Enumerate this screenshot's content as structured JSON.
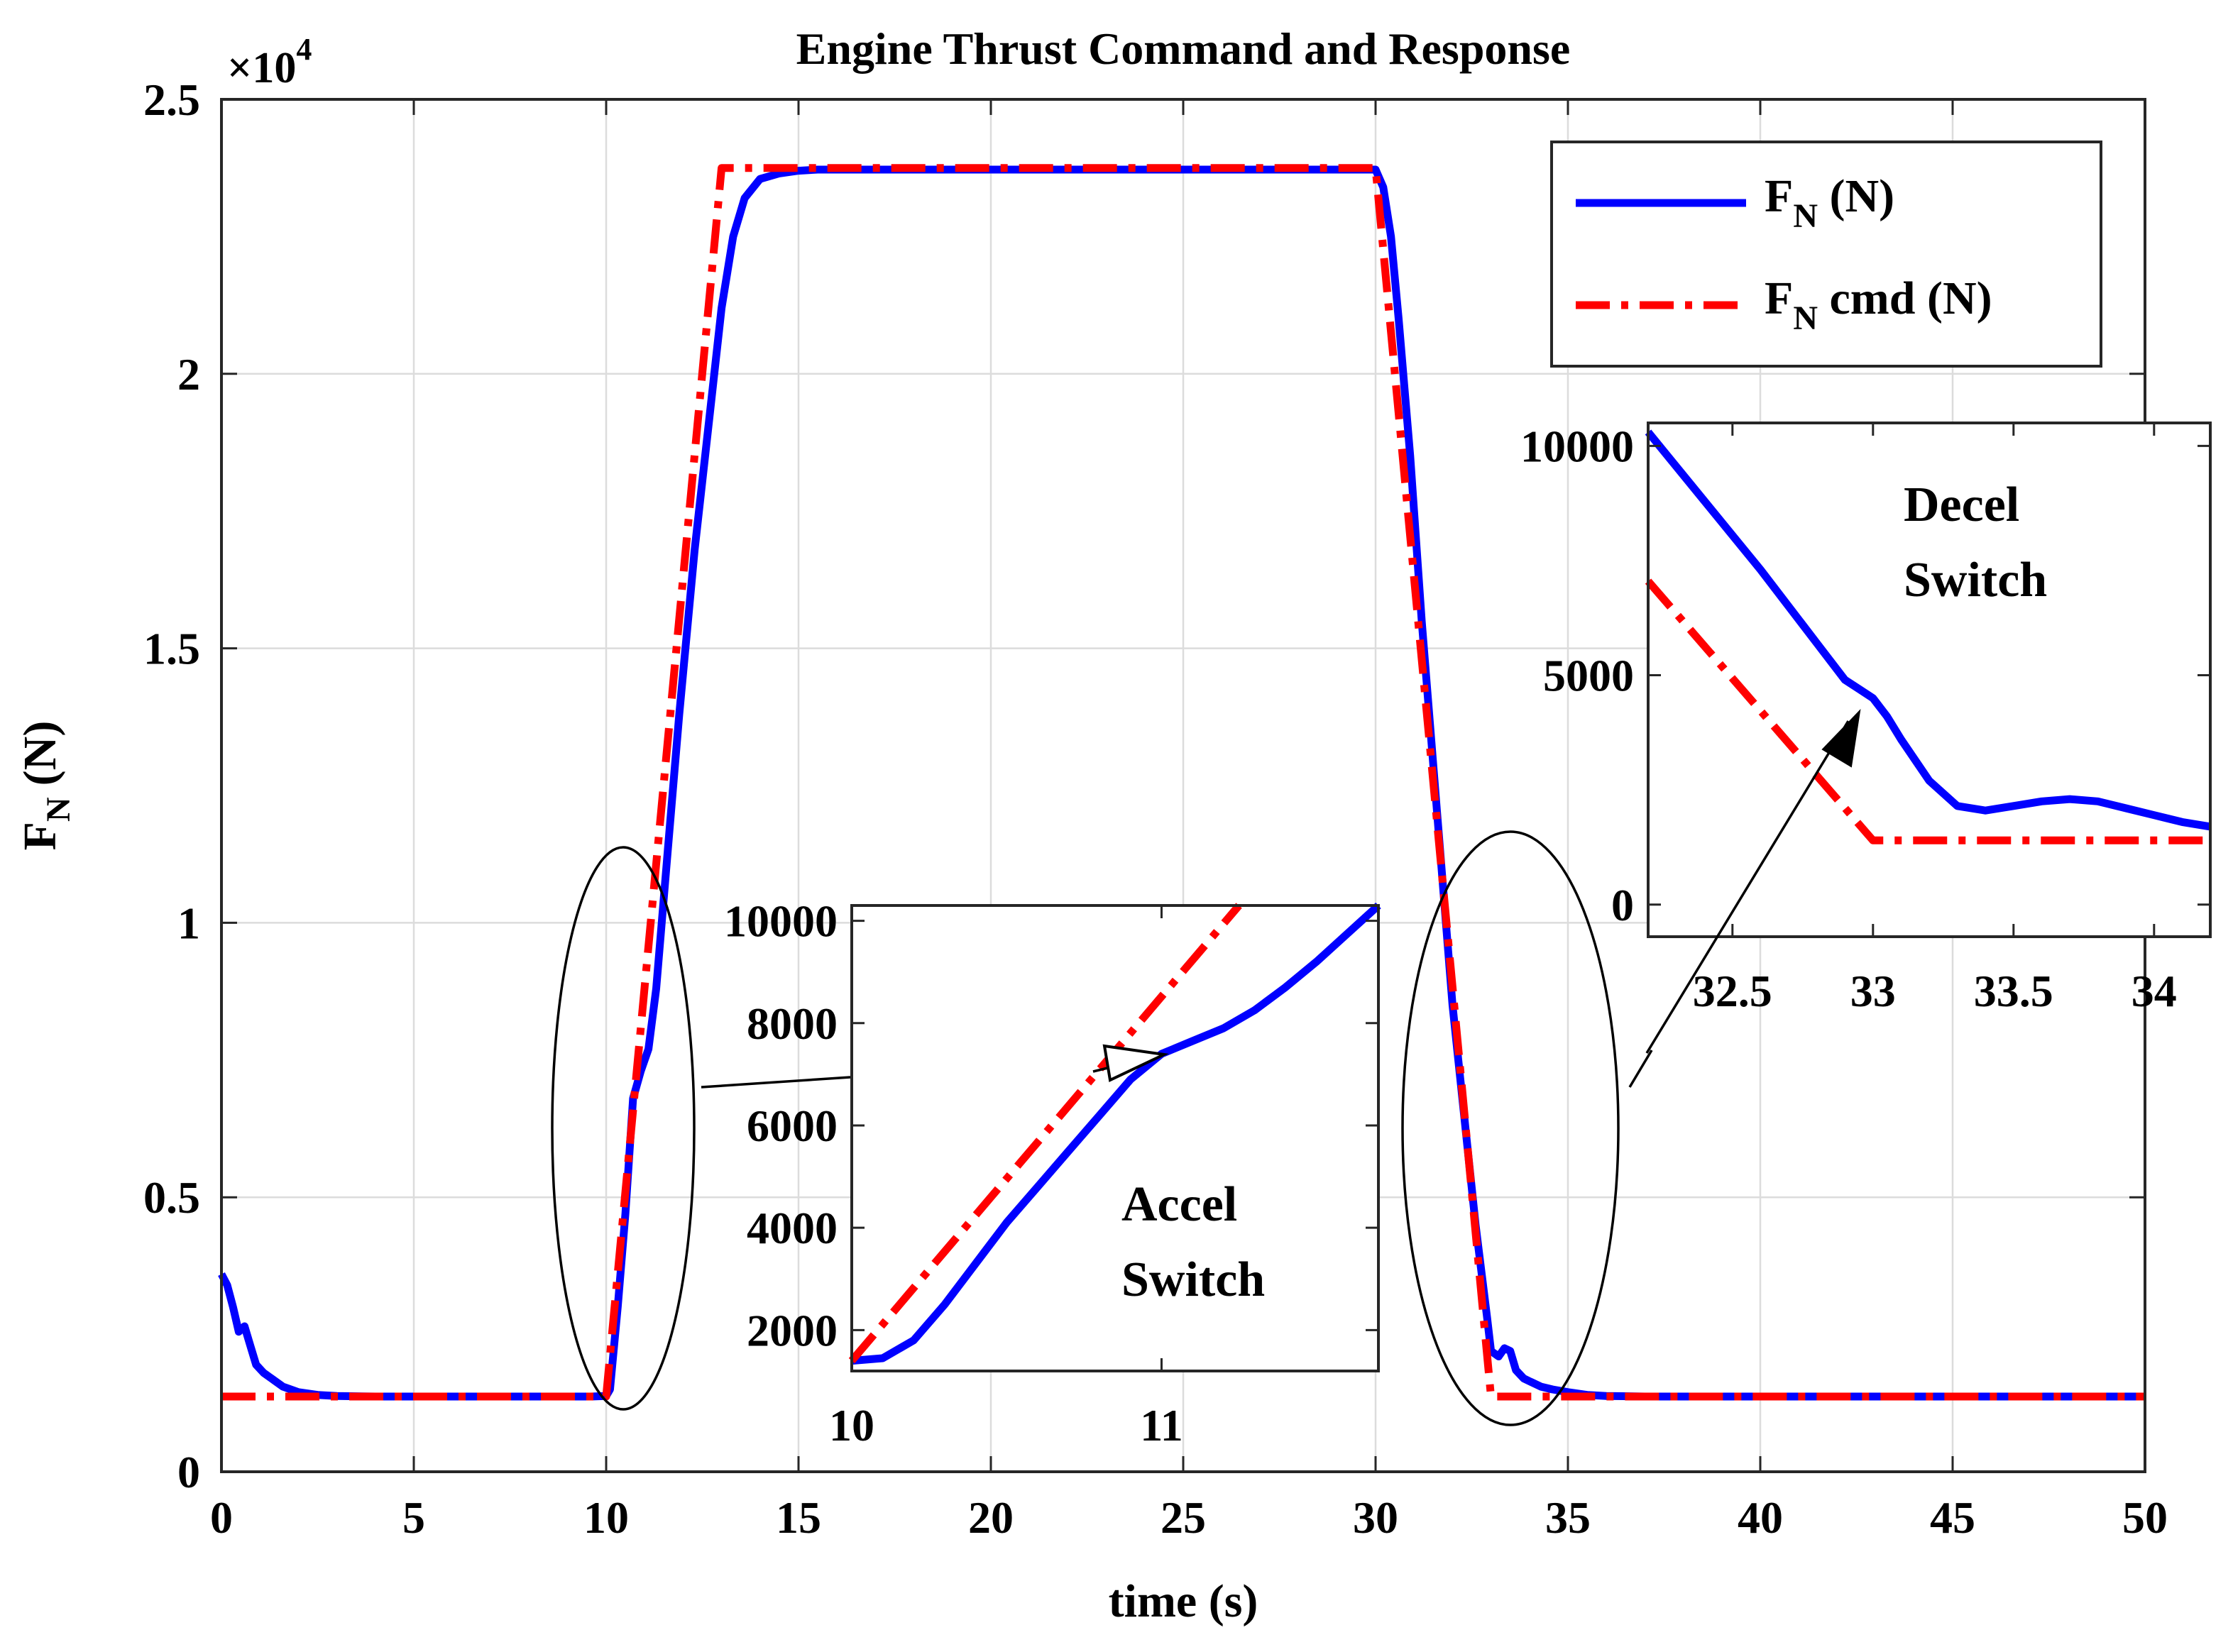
{
  "chart_data": {
    "type": "line",
    "title": "Engine Thrust Command and Response",
    "xlabel": "time (s)",
    "ylabel": "F",
    "ylabel_subscript": "N",
    "ylabel_unit": "(N)",
    "y_exponent_label": "×10",
    "y_exponent_power": "4",
    "xlim": [
      0,
      50
    ],
    "ylim": [
      0,
      25000
    ],
    "grid": true,
    "x_ticks": [
      0,
      5,
      10,
      15,
      20,
      25,
      30,
      35,
      40,
      45,
      50
    ],
    "x_tick_labels": [
      "0",
      "5",
      "10",
      "15",
      "20",
      "25",
      "30",
      "35",
      "40",
      "45",
      "50"
    ],
    "y_ticks": [
      0,
      5000,
      10000,
      15000,
      20000,
      25000
    ],
    "y_tick_labels": [
      "0",
      "0.5",
      "1",
      "1.5",
      "2",
      "2.5"
    ],
    "legend": {
      "position": "top-right",
      "entries": [
        {
          "base": "F",
          "sub": "N",
          "suffix": " (N)"
        },
        {
          "base": "F",
          "sub": "N",
          "suffix": " cmd (N)"
        }
      ]
    },
    "series": [
      {
        "name": "F_N (N)",
        "color": "#0000ff",
        "style": "solid",
        "x": [
          0,
          0.15,
          0.3,
          0.45,
          0.6,
          0.75,
          0.9,
          1.1,
          1.3,
          1.6,
          2.0,
          2.5,
          3.0,
          4.0,
          6.0,
          8.0,
          9.6,
          10.0,
          10.1,
          10.3,
          10.5,
          10.7,
          10.9,
          11.1,
          11.3,
          11.6,
          11.9,
          12.3,
          12.7,
          13.0,
          13.3,
          13.6,
          14.0,
          14.5,
          15.0,
          15.5,
          16.0,
          20.0,
          25.0,
          30.0,
          30.2,
          30.4,
          30.6,
          30.9,
          31.2,
          31.6,
          32.0,
          32.3,
          32.6,
          32.9,
          33.0,
          33.2,
          33.35,
          33.5,
          33.65,
          33.85,
          34.0,
          34.3,
          34.6,
          35.0,
          35.5,
          36.0,
          37.0,
          40.0,
          45.0,
          50.0
        ],
        "y": [
          3600,
          3400,
          3000,
          2550,
          2650,
          2300,
          1950,
          1800,
          1700,
          1550,
          1450,
          1400,
          1380,
          1370,
          1370,
          1370,
          1370,
          1380,
          1500,
          3000,
          4700,
          6800,
          7300,
          7700,
          8800,
          11300,
          13800,
          16800,
          19300,
          21200,
          22500,
          23200,
          23550,
          23650,
          23700,
          23720,
          23720,
          23720,
          23720,
          23720,
          23400,
          22500,
          21000,
          18500,
          15500,
          12000,
          8500,
          6500,
          4500,
          2800,
          2200,
          2100,
          2250,
          2200,
          1850,
          1700,
          1650,
          1550,
          1500,
          1450,
          1400,
          1380,
          1370,
          1370,
          1370,
          1370
        ]
      },
      {
        "name": "F_N cmd (N)",
        "color": "#ff0000",
        "style": "dash-dot",
        "x": [
          0,
          10.0,
          13.0,
          30.0,
          33.0,
          50.0
        ],
        "y": [
          1370,
          1370,
          23750,
          23750,
          1370,
          1370
        ]
      }
    ],
    "insets": [
      {
        "name": "accel-inset",
        "annotation": [
          "Accel",
          "Switch"
        ],
        "xlim": [
          10,
          11.7
        ],
        "ylim": [
          1200,
          10300
        ],
        "x_ticks": [
          10,
          11
        ],
        "x_tick_labels": [
          "10",
          "11"
        ],
        "y_ticks": [
          2000,
          4000,
          6000,
          8000,
          10000
        ],
        "y_tick_labels": [
          "2000",
          "4000",
          "6000",
          "8000",
          "10000"
        ],
        "series": [
          {
            "name": "F_N (N)",
            "x": [
              10.0,
              10.1,
              10.2,
              10.3,
              10.4,
              10.5,
              10.6,
              10.7,
              10.8,
              10.9,
              11.0,
              11.1,
              11.2,
              11.3,
              11.4,
              11.5,
              11.6,
              11.7
            ],
            "y": [
              1400,
              1450,
              1800,
              2500,
              3300,
              4100,
              4800,
              5500,
              6200,
              6900,
              7400,
              7650,
              7900,
              8250,
              8700,
              9200,
              9750,
              10300
            ]
          },
          {
            "name": "F_N cmd (N)",
            "x": [
              10.0,
              11.25
            ],
            "y": [
              1400,
              10300
            ]
          }
        ]
      },
      {
        "name": "decel-inset",
        "annotation": [
          "Decel",
          "Switch"
        ],
        "xlim": [
          32.2,
          34.2
        ],
        "ylim": [
          -700,
          10500
        ],
        "x_ticks": [
          32.5,
          33,
          33.5,
          34
        ],
        "x_tick_labels": [
          "32.5",
          "33",
          "33.5",
          "34"
        ],
        "y_ticks": [
          0,
          5000,
          10000
        ],
        "y_tick_labels": [
          "0",
          "5000",
          "10000"
        ],
        "series": [
          {
            "name": "F_N (N)",
            "x": [
              32.2,
              32.4,
              32.6,
              32.8,
              32.9,
              32.95,
              33.0,
              33.05,
              33.1,
              33.2,
              33.3,
              33.4,
              33.5,
              33.6,
              33.7,
              33.8,
              33.9,
              34.0,
              34.1,
              34.2
            ],
            "y": [
              10300,
              8800,
              7300,
              5700,
              4900,
              4700,
              4500,
              4100,
              3600,
              2700,
              2150,
              2050,
              2150,
              2250,
              2300,
              2250,
              2100,
              1950,
              1800,
              1700
            ]
          },
          {
            "name": "F_N cmd (N)",
            "x": [
              32.2,
              33.0,
              34.2
            ],
            "y": [
              7050,
              1400,
              1400
            ]
          }
        ]
      }
    ]
  }
}
